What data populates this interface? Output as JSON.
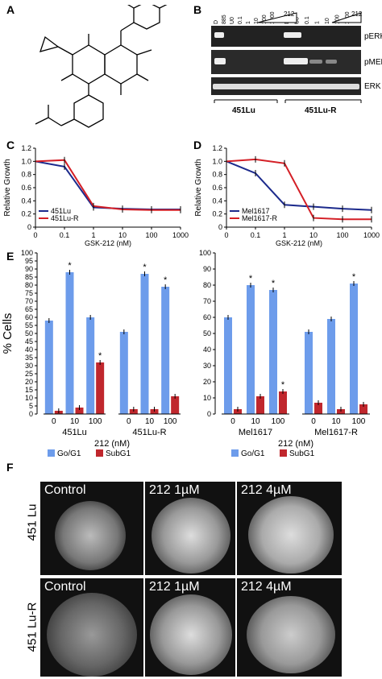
{
  "panels": {
    "A": "A",
    "B": "B",
    "C": "C",
    "D": "D",
    "E": "E",
    "F": "F"
  },
  "panel_b": {
    "lanes_left": [
      "D",
      "885",
      "U0",
      "0.1",
      "1",
      "10",
      "100",
      "1000"
    ],
    "lanes_right": [
      "D",
      "U0",
      "0.1",
      "1",
      "10",
      "100",
      "1000"
    ],
    "wedge_label": "212",
    "bands": [
      "pERK",
      "pMEK",
      "ERK"
    ],
    "cell_lines": [
      "451Lu",
      "451Lu-R"
    ]
  },
  "chart_data": [
    {
      "type": "line",
      "panel": "C",
      "xlabel": "GSK-212 (nM)",
      "ylabel": "Relative Growth",
      "x": [
        0,
        0.1,
        1,
        10,
        100,
        1000
      ],
      "x_tick_labels": [
        "0",
        "0.1",
        "1",
        "10",
        "100",
        "1000"
      ],
      "ylim": [
        0,
        1.2
      ],
      "y_ticks": [
        "0",
        "0.2",
        "0.4",
        "0.6",
        "0.8",
        "1.0",
        "1.2"
      ],
      "legend_position": "bottom-left",
      "series": [
        {
          "name": "451Lu",
          "color": "#1c2a8c",
          "values": [
            1.0,
            0.92,
            0.3,
            0.28,
            0.27,
            0.27
          ]
        },
        {
          "name": "451Lu-R",
          "color": "#d41f26",
          "values": [
            1.0,
            1.02,
            0.32,
            0.27,
            0.26,
            0.26
          ]
        }
      ]
    },
    {
      "type": "line",
      "panel": "D",
      "xlabel": "GSK-212 (nM)",
      "ylabel": "Relative Growth",
      "x": [
        0,
        0.1,
        1,
        10,
        100,
        1000
      ],
      "x_tick_labels": [
        "0",
        "0.1",
        "1",
        "10",
        "100",
        "1000"
      ],
      "ylim": [
        0,
        1.2
      ],
      "y_ticks": [
        "0",
        "0.2",
        "0.4",
        "0.6",
        "0.8",
        "1.0",
        "1.2"
      ],
      "legend_position": "bottom-left",
      "series": [
        {
          "name": "Mel1617",
          "color": "#1c2a8c",
          "values": [
            1.0,
            0.82,
            0.34,
            0.31,
            0.28,
            0.26
          ]
        },
        {
          "name": "Mel1617-R",
          "color": "#d41f26",
          "values": [
            1.0,
            1.03,
            0.97,
            0.14,
            0.12,
            0.12
          ]
        }
      ]
    },
    {
      "type": "bar",
      "panel": "E-left",
      "ylabel": "% Cells",
      "ylim": [
        0,
        100
      ],
      "y_ticks": [
        "0",
        "5",
        "10",
        "15",
        "20",
        "25",
        "30",
        "35",
        "40",
        "45",
        "50",
        "55",
        "60",
        "65",
        "70",
        "75",
        "80",
        "85",
        "90",
        "95",
        "100"
      ],
      "xlabel": "212 (nM)",
      "groups": [
        {
          "name": "451Lu",
          "categories": [
            "0",
            "10",
            "100"
          ],
          "g0g1": [
            58,
            88,
            60
          ],
          "subg1": [
            2,
            4,
            32
          ],
          "star_g0g1": [
            false,
            true,
            false
          ],
          "star_subg1": [
            false,
            false,
            true
          ]
        },
        {
          "name": "451Lu-R",
          "categories": [
            "0",
            "10",
            "100"
          ],
          "g0g1": [
            51,
            87,
            79
          ],
          "subg1": [
            3,
            3,
            11
          ],
          "star_g0g1": [
            false,
            true,
            true
          ],
          "star_subg1": [
            false,
            false,
            false
          ]
        }
      ],
      "legend": [
        "Go/G1",
        "SubG1"
      ],
      "colors": {
        "g0g1": "#6d9ceb",
        "subg1": "#c0272d"
      }
    },
    {
      "type": "bar",
      "panel": "E-right",
      "ylim": [
        0,
        100
      ],
      "y_ticks": [
        "0",
        "10",
        "20",
        "30",
        "40",
        "50",
        "60",
        "70",
        "80",
        "90",
        "100"
      ],
      "xlabel": "212 (nM)",
      "groups": [
        {
          "name": "Mel1617",
          "categories": [
            "0",
            "10",
            "100"
          ],
          "g0g1": [
            60,
            80,
            77
          ],
          "subg1": [
            3,
            11,
            14
          ],
          "star_g0g1": [
            false,
            true,
            true
          ],
          "star_subg1": [
            false,
            false,
            true
          ]
        },
        {
          "name": "Mel1617-R",
          "categories": [
            "0",
            "10",
            "100"
          ],
          "g0g1": [
            51,
            59,
            81
          ],
          "subg1": [
            7,
            3,
            6
          ],
          "star_g0g1": [
            false,
            false,
            true
          ],
          "star_subg1": [
            false,
            false,
            false
          ]
        }
      ],
      "legend": [
        "Go/G1",
        "SubG1"
      ],
      "colors": {
        "g0g1": "#6d9ceb",
        "subg1": "#c0272d"
      }
    }
  ],
  "panel_f": {
    "row_labels": [
      "451 Lu",
      "451 Lu-R"
    ],
    "columns": [
      "Control",
      "212 1µM",
      "212 4µM"
    ],
    "columns_row2": [
      "Control",
      "212 1µM",
      "212 4µM"
    ]
  }
}
